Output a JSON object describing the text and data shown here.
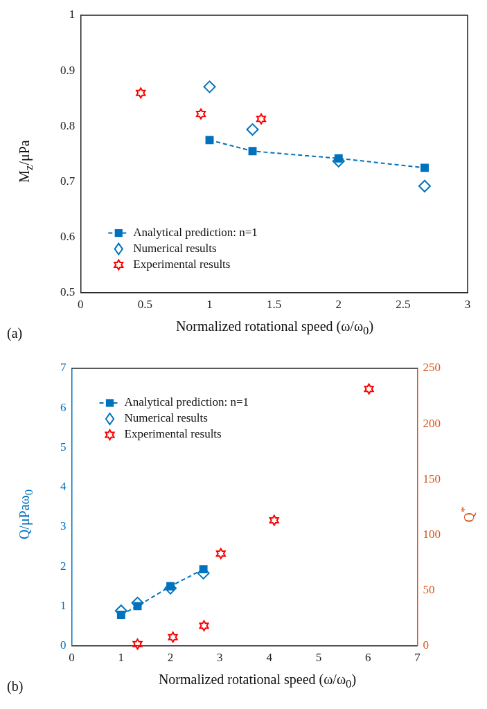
{
  "chart_data": [
    {
      "type": "scatter",
      "xlabel": "Normalized rotational speed (ω/ω$_{0}$)",
      "ylabel": "M$_{z}$/μPa",
      "annotations": [
        "(a)"
      ],
      "xlim": [
        0,
        3
      ],
      "xticks": [
        0,
        0.5,
        1,
        1.5,
        2,
        2.5,
        3
      ],
      "ylim": [
        0.5,
        1
      ],
      "yticks": [
        0.5,
        0.6,
        0.7,
        0.8,
        0.9,
        1
      ],
      "grid": false,
      "legend": "bottom left",
      "series": [
        {
          "name": "Analytical prediction: n=1",
          "type": "line",
          "color": "#0072bd",
          "marker": "square",
          "line_style": "dashed",
          "x": [
            1,
            1.333,
            2,
            2.667
          ],
          "values": [
            0.775,
            0.755,
            0.742,
            0.725
          ]
        },
        {
          "name": "Numerical results",
          "type": "scatter",
          "color": "#0072bd",
          "marker": "diamond",
          "x": [
            1,
            1.333,
            2,
            2.667
          ],
          "values": [
            0.871,
            0.794,
            0.737,
            0.692
          ]
        },
        {
          "name": "Experimental results",
          "type": "scatter",
          "color": "#ff0000",
          "x": [
            0.467,
            0.933,
            1.4
          ],
          "values": [
            0.86,
            0.822,
            0.813
          ]
        }
      ]
    },
    {
      "type": "scatter",
      "xlabel": "Normalized rotational speed (ω/ω$_{0}$)",
      "ylabel": "Q/μPaω$_{0}$",
      "y2label": "Q$^{*}$",
      "annotations": [
        "(b)"
      ],
      "xlim": [
        0,
        7
      ],
      "xticks": [
        0,
        1,
        2,
        3,
        4,
        5,
        6,
        7
      ],
      "ylim": [
        0,
        7
      ],
      "yticks": [
        0,
        1,
        2,
        3,
        4,
        5,
        6,
        7
      ],
      "y2lim": [
        0,
        250
      ],
      "y2ticks": [
        0,
        50,
        100,
        150,
        200,
        250
      ],
      "grid": false,
      "legend": "top left",
      "series": [
        {
          "name": "Analytical prediction: n=1",
          "type": "line",
          "color": "#0072bd",
          "marker": "square",
          "line_style": "dashed",
          "x": [
            1,
            1.333,
            2,
            2.667
          ],
          "values": [
            0.78,
            1.0,
            1.5,
            1.93
          ]
        },
        {
          "name": "Numerical results",
          "type": "scatter",
          "color": "#0072bd",
          "marker": "diamond",
          "x": [
            1,
            1.333,
            2,
            2.667
          ],
          "values": [
            0.88,
            1.08,
            1.45,
            1.83
          ]
        },
        {
          "name": "Experimental results",
          "type": "scatter",
          "color": "#ff0000",
          "axis": "y2",
          "x": [
            1.333,
            2.05,
            2.68,
            3.02,
            4.1,
            6.02
          ],
          "values": [
            1.4,
            7.7,
            18,
            83,
            113,
            231.5
          ]
        }
      ]
    }
  ]
}
